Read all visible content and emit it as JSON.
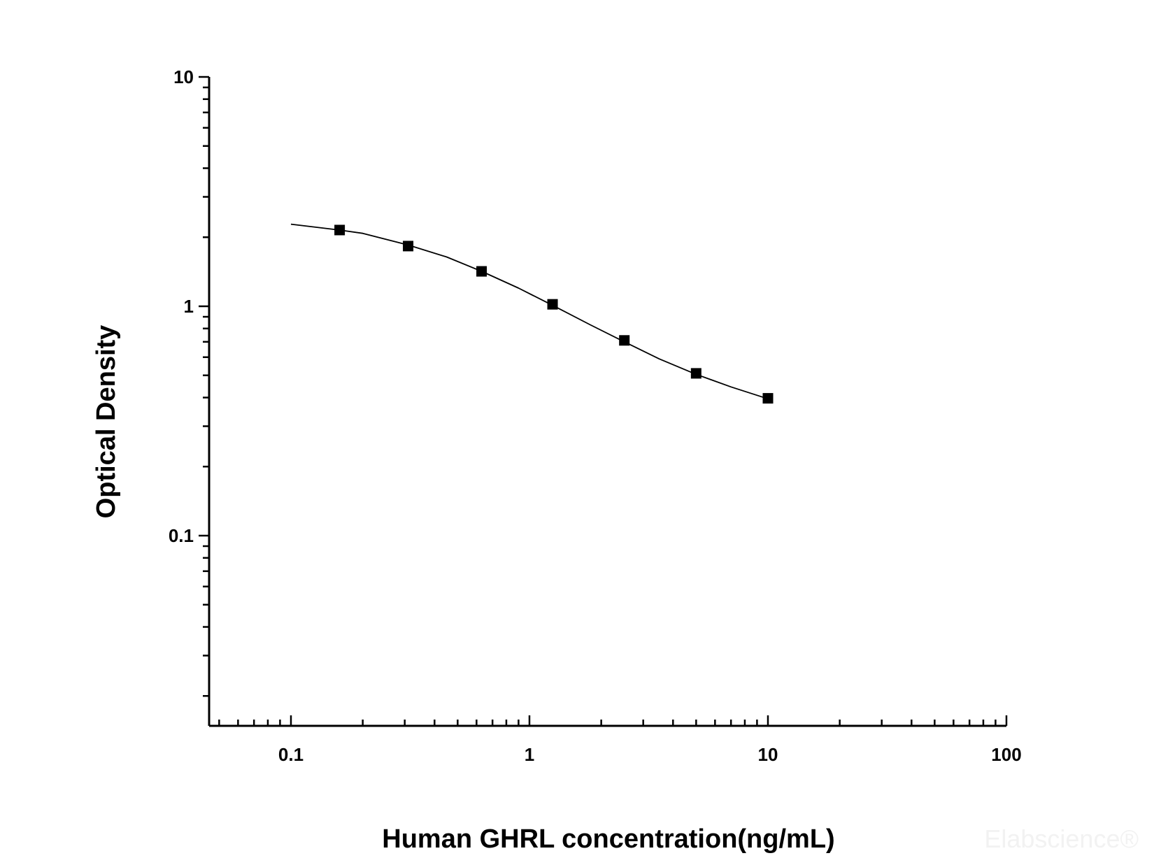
{
  "chart_data": {
    "type": "scatter",
    "xlabel": "Human GHRL concentration(ng/mL)",
    "ylabel": "Optical Density",
    "x_scale": "log",
    "y_scale": "log",
    "xlim": [
      0.05,
      100
    ],
    "ylim": [
      0.016,
      10
    ],
    "x_ticks": [
      {
        "value": 0.1,
        "label": "0.1"
      },
      {
        "value": 1,
        "label": "1"
      },
      {
        "value": 10,
        "label": "10"
      },
      {
        "value": 100,
        "label": "100"
      }
    ],
    "y_ticks": [
      {
        "value": 0.1,
        "label": "0.1"
      },
      {
        "value": 1,
        "label": "1"
      },
      {
        "value": 10,
        "label": "10"
      }
    ],
    "grid": false,
    "legend": "none",
    "series": [
      {
        "marker": "square",
        "color": "#000000",
        "x": [
          0.16,
          0.31,
          0.63,
          1.25,
          2.5,
          5,
          10
        ],
        "y": [
          2.15,
          1.83,
          1.42,
          1.02,
          0.71,
          0.51,
          0.397
        ]
      }
    ],
    "fit_curve": {
      "color": "#000000",
      "x": [
        0.1,
        0.16,
        0.2,
        0.31,
        0.45,
        0.63,
        0.9,
        1.25,
        1.8,
        2.5,
        3.5,
        5,
        7,
        10
      ],
      "y": [
        2.28,
        2.15,
        2.08,
        1.85,
        1.64,
        1.42,
        1.2,
        1.01,
        0.83,
        0.7,
        0.59,
        0.505,
        0.445,
        0.395
      ]
    },
    "watermark": "Elabscience®"
  }
}
